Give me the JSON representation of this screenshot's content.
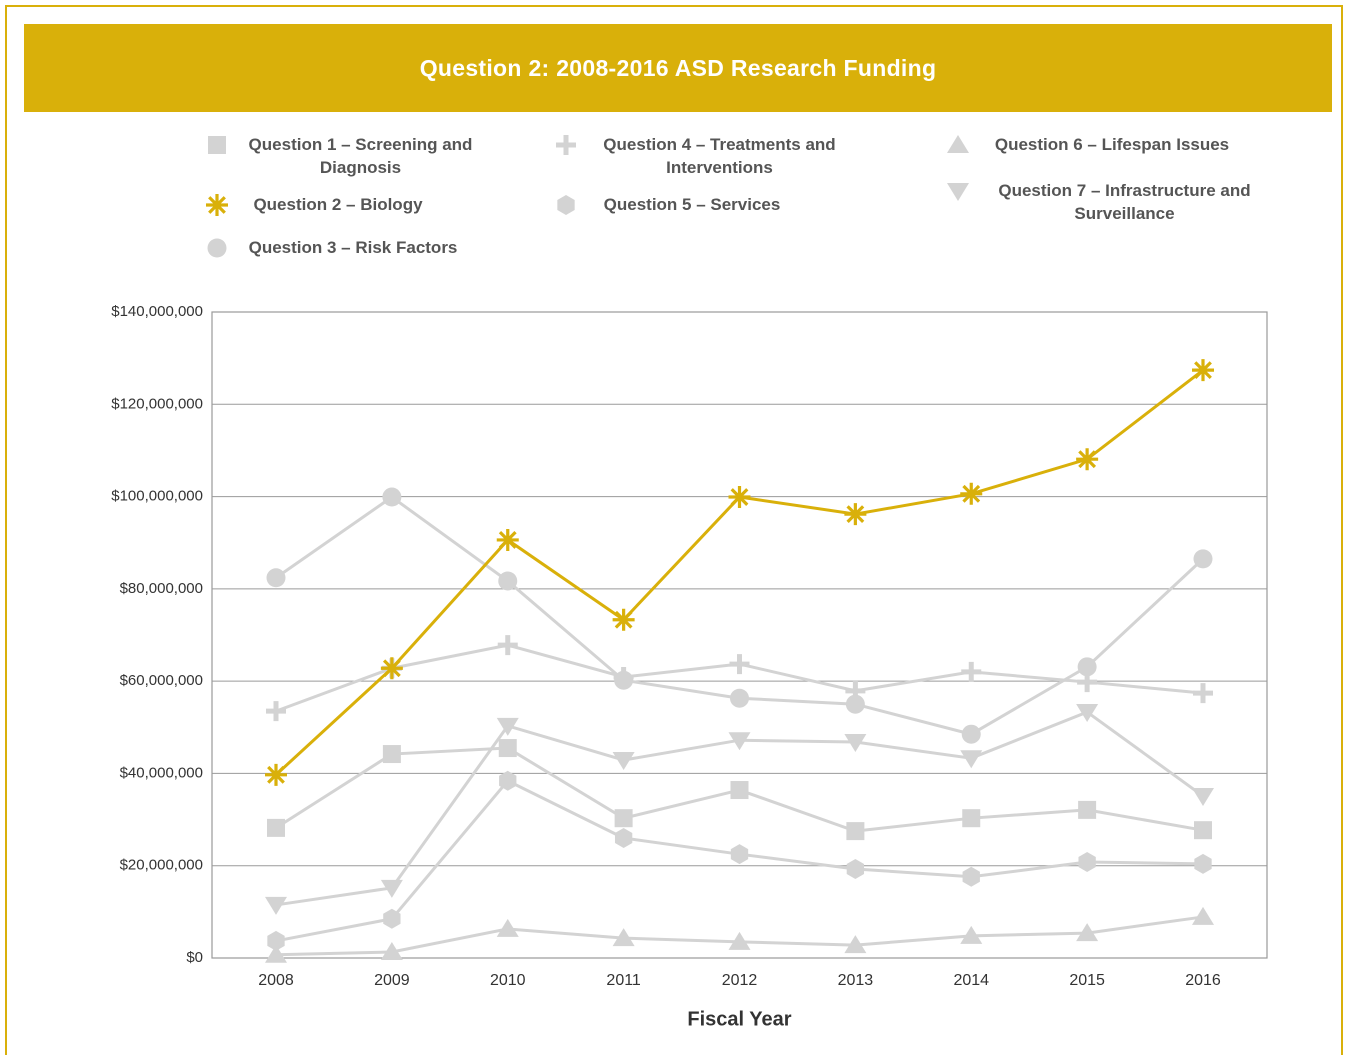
{
  "chart_data": {
    "type": "line",
    "title": "Question 2: 2008-2016 ASD Research Funding",
    "x_label": "Fiscal Year",
    "categories": [
      "2008",
      "2009",
      "2010",
      "2011",
      "2012",
      "2013",
      "2014",
      "2015",
      "2016"
    ],
    "series": [
      {
        "name": "Question 1 – Screening and Diagnosis",
        "color": "#d3d3d3",
        "marker": "square",
        "values": [
          28200000,
          44200000,
          45500000,
          30300000,
          36400000,
          27500000,
          30300000,
          32100000,
          27700000
        ]
      },
      {
        "name": "Question 2 – Biology",
        "color": "#d9b00a",
        "marker": "asterisk",
        "values": [
          39700000,
          62800000,
          90600000,
          73300000,
          99900000,
          96200000,
          100600000,
          108100000,
          127400000
        ]
      },
      {
        "name": "Question 3 – Risk Factors",
        "color": "#d3d3d3",
        "marker": "circle",
        "values": [
          82400000,
          99900000,
          81700000,
          60200000,
          56300000,
          55000000,
          48500000,
          63100000,
          86500000
        ]
      },
      {
        "name": "Question 4 – Treatments and Interventions",
        "color": "#d3d3d3",
        "marker": "plus",
        "values": [
          53500000,
          62800000,
          67800000,
          60900000,
          63700000,
          57900000,
          62000000,
          59800000,
          57400000
        ]
      },
      {
        "name": "Question 5 – Services",
        "color": "#d3d3d3",
        "marker": "hexagon",
        "values": [
          3700000,
          8500000,
          38400000,
          26000000,
          22500000,
          19300000,
          17600000,
          20800000,
          20400000
        ]
      },
      {
        "name": "Question 6 – Lifespan Issues",
        "color": "#d3d3d3",
        "marker": "triangle-up",
        "values": [
          700000,
          1300000,
          6300000,
          4300000,
          3500000,
          2800000,
          4800000,
          5400000,
          8900000
        ]
      },
      {
        "name": "Question 7 – Infrastructure and Surveillance",
        "color": "#d3d3d3",
        "marker": "triangle-down",
        "values": [
          11500000,
          15200000,
          50300000,
          42900000,
          47200000,
          46800000,
          43300000,
          53300000,
          35100000
        ]
      }
    ],
    "ylim": [
      0,
      140000000
    ],
    "yticks": [
      {
        "value": 0,
        "label": "$0"
      },
      {
        "value": 20000000,
        "label": "$20,000,000"
      },
      {
        "value": 40000000,
        "label": "$40,000,000"
      },
      {
        "value": 60000000,
        "label": "$60,000,000"
      },
      {
        "value": 80000000,
        "label": "$80,000,000"
      },
      {
        "value": 100000000,
        "label": "$100,000,000"
      },
      {
        "value": 120000000,
        "label": "$120,000,000"
      },
      {
        "value": 140000000,
        "label": "$140,000,000"
      }
    ],
    "grid": true
  }
}
